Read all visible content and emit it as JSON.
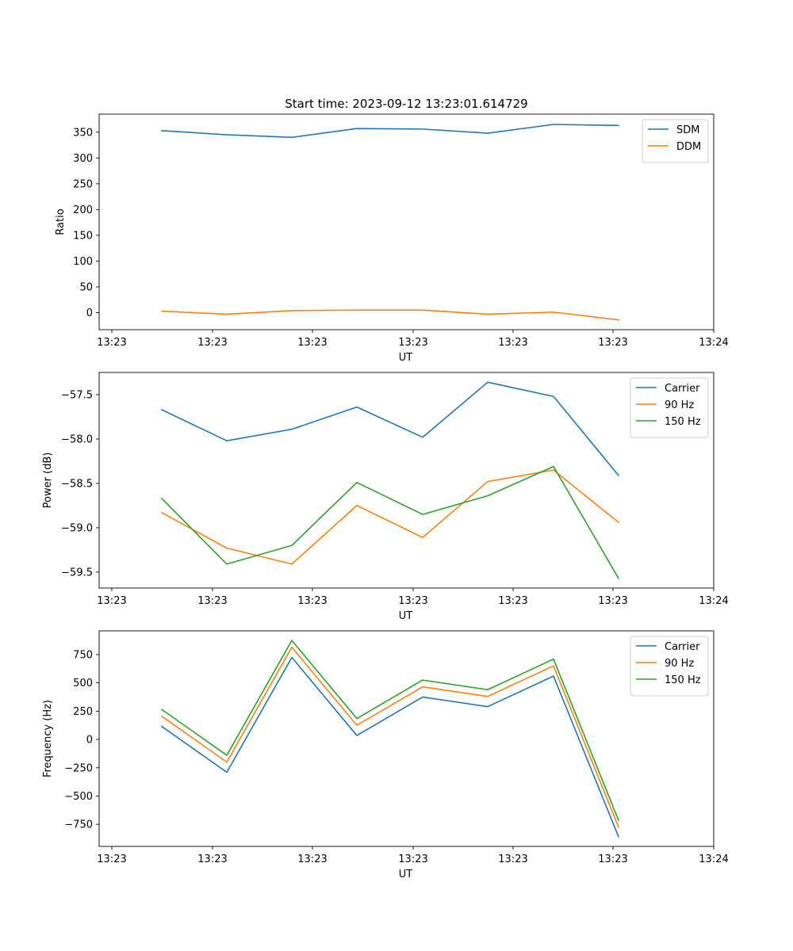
{
  "chart_data": [
    {
      "type": "line",
      "title": "Start time: 2023-09-12 13:23:01.614729",
      "xlabel": "UT",
      "ylabel": "Ratio",
      "xticks": [
        "13:23",
        "13:23",
        "13:23",
        "13:23",
        "13:23",
        "13:23",
        "13:24"
      ],
      "ylim": [
        -33,
        385
      ],
      "yticks": [
        "0",
        "50",
        "100",
        "150",
        "200",
        "250",
        "300",
        "350"
      ],
      "legend": "top-right",
      "series": [
        {
          "name": "SDM",
          "color": "#1f77b4",
          "values": [
            353,
            345,
            340,
            357,
            356,
            348,
            365,
            363
          ]
        },
        {
          "name": "DDM",
          "color": "#ff7f0e",
          "values": [
            3,
            -3,
            4,
            5,
            5,
            -3,
            1,
            -14
          ]
        }
      ]
    },
    {
      "type": "line",
      "title": "",
      "xlabel": "UT",
      "ylabel": "Power (dB)",
      "xticks": [
        "13:23",
        "13:23",
        "13:23",
        "13:23",
        "13:23",
        "13:23",
        "13:24"
      ],
      "ylim": [
        -59.68,
        -57.25
      ],
      "yticks": [
        "−59.5",
        "−59.0",
        "−58.5",
        "−58.0",
        "−57.5"
      ],
      "legend": "top-right",
      "series": [
        {
          "name": "Carrier",
          "color": "#1f77b4",
          "values": [
            -57.67,
            -58.02,
            -57.89,
            -57.64,
            -57.98,
            -57.36,
            -57.52,
            -58.41
          ]
        },
        {
          "name": "90 Hz",
          "color": "#ff7f0e",
          "values": [
            -58.83,
            -59.23,
            -59.41,
            -58.75,
            -59.11,
            -58.48,
            -58.35,
            -58.94
          ]
        },
        {
          "name": "150 Hz",
          "color": "#2ca02c",
          "values": [
            -58.67,
            -59.41,
            -59.2,
            -58.49,
            -58.85,
            -58.64,
            -58.31,
            -59.57
          ]
        }
      ]
    },
    {
      "type": "line",
      "title": "",
      "xlabel": "UT",
      "ylabel": "Frequency (Hz)",
      "xticks": [
        "13:23",
        "13:23",
        "13:23",
        "13:23",
        "13:23",
        "13:23",
        "13:24"
      ],
      "ylim": [
        -945,
        960
      ],
      "yticks": [
        "−750",
        "−500",
        "−250",
        "0",
        "250",
        "500",
        "750"
      ],
      "legend": "top-right",
      "series": [
        {
          "name": "Carrier",
          "color": "#1f77b4",
          "values": [
            115,
            -290,
            725,
            35,
            375,
            290,
            560,
            -860
          ]
        },
        {
          "name": "90 Hz",
          "color": "#ff7f0e",
          "values": [
            205,
            -200,
            815,
            125,
            465,
            380,
            650,
            -775
          ]
        },
        {
          "name": "150 Hz",
          "color": "#2ca02c",
          "values": [
            265,
            -140,
            875,
            185,
            525,
            440,
            710,
            -715
          ]
        }
      ]
    }
  ]
}
